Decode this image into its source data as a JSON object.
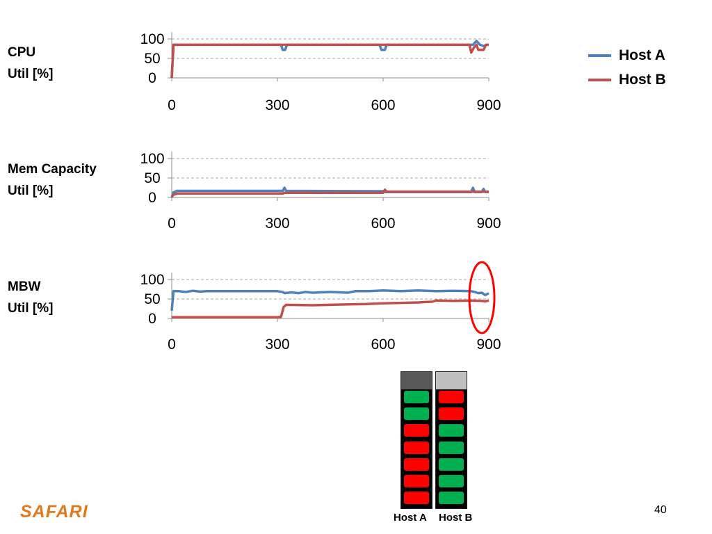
{
  "labels": {
    "cpu": [
      "CPU",
      "Util [%]"
    ],
    "mem": [
      "Mem Capacity",
      "Util [%]"
    ],
    "mbw": [
      "MBW",
      "Util [%]"
    ]
  },
  "legend": [
    {
      "name": "Host A",
      "color": "#4f81bd"
    },
    {
      "name": "Host B",
      "color": "#c0504d"
    }
  ],
  "chart_data": [
    {
      "type": "line",
      "xlim": [
        0,
        900
      ],
      "ylim": [
        0,
        100
      ],
      "xticks": [
        0,
        300,
        600,
        900
      ],
      "yticks": [
        0,
        50,
        100
      ],
      "grid": "horizontal-dashed",
      "series": [
        {
          "name": "Host A",
          "color": "#4f81bd",
          "points": [
            [
              0,
              0
            ],
            [
              5,
              85
            ],
            [
              310,
              85
            ],
            [
              315,
              72
            ],
            [
              322,
              72
            ],
            [
              327,
              85
            ],
            [
              590,
              85
            ],
            [
              595,
              72
            ],
            [
              605,
              72
            ],
            [
              610,
              85
            ],
            [
              845,
              85
            ],
            [
              855,
              85
            ],
            [
              865,
              95
            ],
            [
              875,
              85
            ],
            [
              885,
              82
            ],
            [
              895,
              85
            ],
            [
              900,
              85
            ]
          ]
        },
        {
          "name": "Host B",
          "color": "#c0504d",
          "points": [
            [
              0,
              0
            ],
            [
              5,
              85
            ],
            [
              845,
              85
            ],
            [
              850,
              65
            ],
            [
              858,
              78
            ],
            [
              865,
              85
            ],
            [
              870,
              72
            ],
            [
              885,
              72
            ],
            [
              892,
              85
            ],
            [
              900,
              85
            ]
          ]
        }
      ]
    },
    {
      "type": "line",
      "xlim": [
        0,
        900
      ],
      "ylim": [
        0,
        100
      ],
      "xticks": [
        0,
        300,
        600,
        900
      ],
      "yticks": [
        0,
        50,
        100
      ],
      "grid": "horizontal-dashed",
      "series": [
        {
          "name": "Host A",
          "color": "#4f81bd",
          "points": [
            [
              0,
              0
            ],
            [
              5,
              13
            ],
            [
              15,
              17
            ],
            [
              315,
              17
            ],
            [
              320,
              25
            ],
            [
              325,
              17
            ],
            [
              600,
              16
            ],
            [
              605,
              14
            ],
            [
              850,
              14
            ],
            [
              855,
              25
            ],
            [
              860,
              14
            ],
            [
              880,
              14
            ],
            [
              885,
              22
            ],
            [
              890,
              14
            ],
            [
              900,
              14
            ]
          ]
        },
        {
          "name": "Host B",
          "color": "#c0504d",
          "points": [
            [
              0,
              2
            ],
            [
              5,
              7
            ],
            [
              15,
              10
            ],
            [
              315,
              10
            ],
            [
              320,
              12
            ],
            [
              600,
              12
            ],
            [
              605,
              20
            ],
            [
              610,
              15
            ],
            [
              900,
              15
            ]
          ]
        }
      ]
    },
    {
      "type": "line",
      "xlim": [
        0,
        900
      ],
      "ylim": [
        0,
        100
      ],
      "xticks": [
        0,
        300,
        600,
        900
      ],
      "yticks": [
        0,
        50,
        100
      ],
      "grid": "horizontal-dashed",
      "series": [
        {
          "name": "Host A",
          "color": "#4f81bd",
          "points": [
            [
              0,
              20
            ],
            [
              5,
              70
            ],
            [
              20,
              70
            ],
            [
              40,
              68
            ],
            [
              60,
              71
            ],
            [
              80,
              69
            ],
            [
              100,
              70
            ],
            [
              150,
              70
            ],
            [
              200,
              70
            ],
            [
              250,
              70
            ],
            [
              300,
              70
            ],
            [
              315,
              68
            ],
            [
              320,
              65
            ],
            [
              340,
              67
            ],
            [
              360,
              65
            ],
            [
              380,
              68
            ],
            [
              400,
              66
            ],
            [
              450,
              68
            ],
            [
              500,
              66
            ],
            [
              520,
              70
            ],
            [
              560,
              70
            ],
            [
              600,
              72
            ],
            [
              650,
              70
            ],
            [
              700,
              72
            ],
            [
              750,
              70
            ],
            [
              800,
              71
            ],
            [
              850,
              70
            ],
            [
              860,
              68
            ],
            [
              870,
              65
            ],
            [
              880,
              66
            ],
            [
              890,
              60
            ],
            [
              900,
              65
            ]
          ]
        },
        {
          "name": "Host B",
          "color": "#c0504d",
          "points": [
            [
              0,
              3
            ],
            [
              100,
              3
            ],
            [
              200,
              3
            ],
            [
              300,
              3
            ],
            [
              310,
              4
            ],
            [
              318,
              30
            ],
            [
              325,
              35
            ],
            [
              400,
              34
            ],
            [
              500,
              36
            ],
            [
              550,
              37
            ],
            [
              600,
              39
            ],
            [
              650,
              40
            ],
            [
              700,
              41
            ],
            [
              740,
              43
            ],
            [
              750,
              46
            ],
            [
              800,
              45
            ],
            [
              850,
              46
            ],
            [
              880,
              45
            ],
            [
              890,
              44
            ],
            [
              900,
              46
            ]
          ]
        }
      ]
    }
  ],
  "hosts": [
    {
      "label": "Host A",
      "header_color": "#595959",
      "cells": [
        "#00b050",
        "#00b050",
        "#ff0000",
        "#ff0000",
        "#ff0000",
        "#ff0000",
        "#ff0000"
      ]
    },
    {
      "label": "Host B",
      "header_color": "#bfbfbf",
      "cells": [
        "#ff0000",
        "#ff0000",
        "#00b050",
        "#00b050",
        "#00b050",
        "#00b050",
        "#00b050"
      ]
    }
  ],
  "highlight": {
    "color": "#ff0000"
  },
  "footer": {
    "logo": "SAFARI",
    "page_number": "40"
  }
}
